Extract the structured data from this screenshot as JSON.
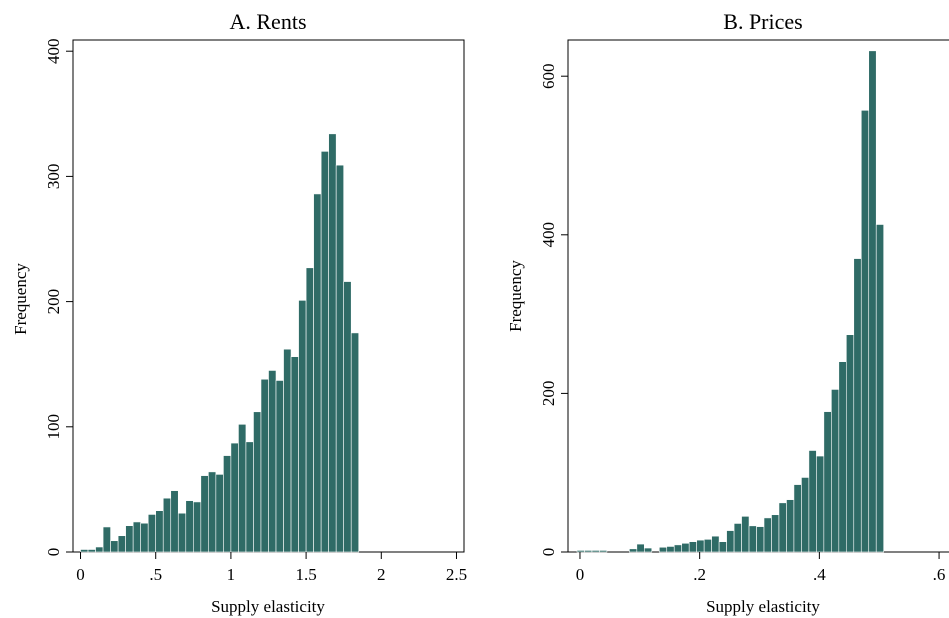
{
  "chart_data": [
    {
      "type": "bar",
      "title": "A. Rents",
      "xlabel": "Supply elasticity",
      "ylabel": "Frequency",
      "xlim": [
        -0.05,
        2.55
      ],
      "ylim": [
        0,
        400
      ],
      "xticks": [
        {
          "value": 0,
          "label": "0"
        },
        {
          "value": 0.5,
          "label": ".5"
        },
        {
          "value": 1,
          "label": "1"
        },
        {
          "value": 1.5,
          "label": "1.5"
        },
        {
          "value": 2,
          "label": "2"
        },
        {
          "value": 2.5,
          "label": "2.5"
        }
      ],
      "yticks": [
        {
          "value": 0,
          "label": "0"
        },
        {
          "value": 100,
          "label": "100"
        },
        {
          "value": 200,
          "label": "200"
        },
        {
          "value": 300,
          "label": "300"
        },
        {
          "value": 400,
          "label": "400"
        }
      ],
      "bin_start": 0.0,
      "bin_width": 0.05,
      "values": [
        2,
        2,
        4,
        20,
        9,
        13,
        21,
        24,
        23,
        30,
        33,
        43,
        49,
        31,
        41,
        40,
        61,
        64,
        62,
        77,
        87,
        102,
        88,
        112,
        138,
        145,
        137,
        162,
        156,
        201,
        227,
        286,
        320,
        334,
        309,
        216,
        175
      ],
      "color": "#2f6b66",
      "grid": false
    },
    {
      "type": "bar",
      "title": "B. Prices",
      "xlabel": "Supply elasticity",
      "ylabel": "Frequency",
      "xlim": [
        -0.02,
        0.64
      ],
      "ylim": [
        0,
        650
      ],
      "xticks": [
        {
          "value": 0,
          "label": "0"
        },
        {
          "value": 0.2,
          "label": ".2"
        },
        {
          "value": 0.4,
          "label": ".4"
        },
        {
          "value": 0.6,
          "label": ".6"
        }
      ],
      "yticks": [
        {
          "value": 0,
          "label": "0"
        },
        {
          "value": 200,
          "label": "200"
        },
        {
          "value": 400,
          "label": "400"
        },
        {
          "value": 600,
          "label": "600"
        }
      ],
      "bin_start": -0.005,
      "bin_width": 0.0125,
      "values": [
        2,
        2,
        2,
        2,
        0,
        0,
        0,
        4,
        10,
        5,
        0,
        6,
        7,
        9,
        11,
        13,
        15,
        16,
        20,
        13,
        27,
        36,
        45,
        33,
        32,
        43,
        47,
        62,
        66,
        85,
        94,
        128,
        121,
        177,
        205,
        240,
        274,
        370,
        557,
        632,
        413
      ],
      "color": "#2f6b66",
      "grid": false
    }
  ]
}
